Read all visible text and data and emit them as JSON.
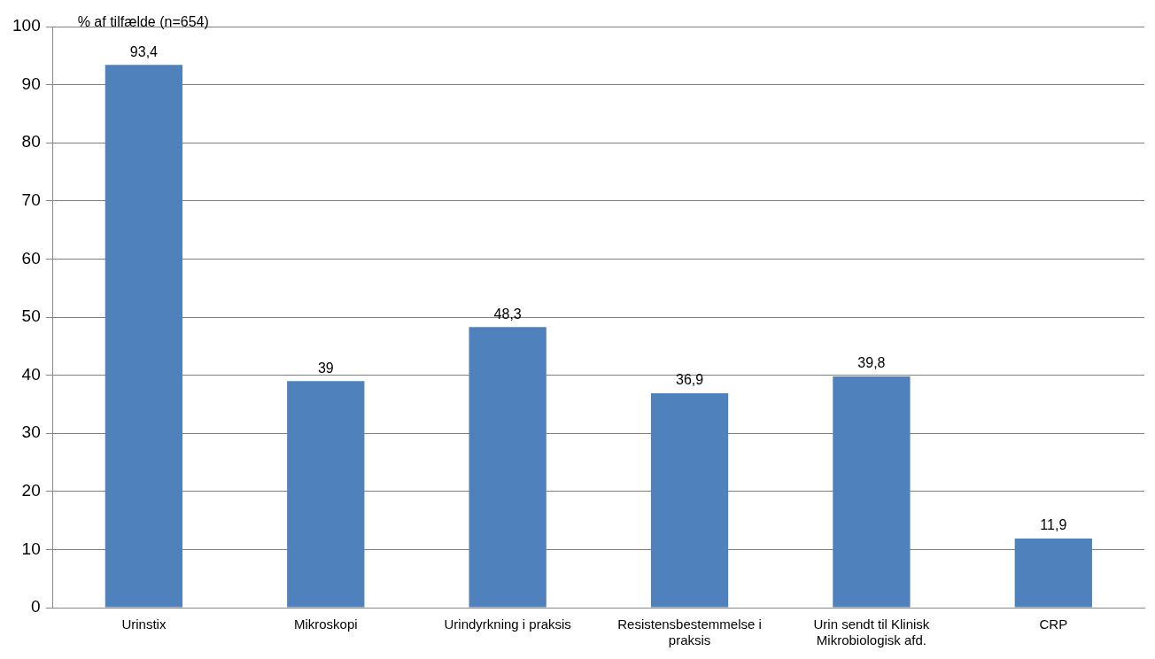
{
  "chart_data": {
    "type": "bar",
    "ylabel": "% af tilfælde (n=654)",
    "categories": [
      "Urinstix",
      "Mikroskopi",
      "Urindyrkning i praksis",
      "Resistensbestemmelse i praksis",
      "Urin sendt til Klinisk Mikrobiologisk afd.",
      "CRP"
    ],
    "values": [
      93.4,
      39,
      48.3,
      36.9,
      39.8,
      11.9
    ],
    "value_labels": [
      "93,4",
      "39",
      "48,3",
      "36,9",
      "39,8",
      "11,9"
    ],
    "color": "#4f81bd",
    "ylim": [
      0,
      100
    ],
    "yticks": [
      0,
      10,
      20,
      30,
      40,
      50,
      60,
      70,
      80,
      90,
      100
    ],
    "grid": "y",
    "legend": false
  }
}
